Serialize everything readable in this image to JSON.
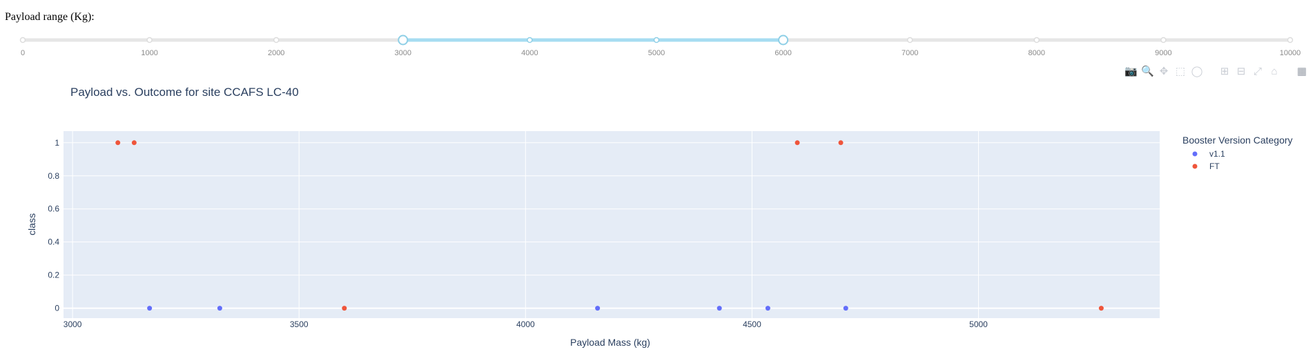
{
  "slider": {
    "label": "Payload range (Kg):",
    "min": 0,
    "max": 10000,
    "selected": [
      3000,
      6000
    ],
    "marks": [
      "0",
      "1000",
      "2000",
      "3000",
      "4000",
      "5000",
      "6000",
      "7000",
      "8000",
      "9000",
      "10000"
    ],
    "track_color": "#e6e6e6",
    "range_color": "#a6dcf1",
    "handle_color": "#8ecfe6"
  },
  "modebar": {
    "buttons": [
      "camera-icon",
      "zoom-icon",
      "pan-icon",
      "box-select-icon",
      "lasso-select-icon",
      "zoom-in-icon",
      "zoom-out-icon",
      "autoscale-icon",
      "reset-axes-icon",
      "plotly-logo-icon"
    ]
  },
  "chart_data": {
    "type": "scatter",
    "title": "Payload vs. Outcome for site CCAFS LC-40",
    "xlabel": "Payload Mass (kg)",
    "ylabel": "class",
    "xlim": [
      2980,
      5400
    ],
    "ylim": [
      -0.06,
      1.07
    ],
    "xticks": [
      3000,
      3500,
      4000,
      4500,
      5000
    ],
    "yticks": [
      0,
      0.2,
      0.4,
      0.6,
      0.8,
      1
    ],
    "ytick_labels": [
      "0",
      "0.2",
      "0.4",
      "0.6",
      "0.8",
      "1"
    ],
    "xtick_labels": [
      "3000",
      "3500",
      "4000",
      "4500",
      "5000"
    ],
    "grid": true,
    "legend_title": "Booster Version Category",
    "legend_position": "right",
    "plot_bg": "#e5ecf6",
    "series": [
      {
        "name": "v1.1",
        "color": "#636efa",
        "x": [
          3170,
          3325,
          4159,
          4428,
          4535,
          4707
        ],
        "y": [
          0,
          0,
          0,
          0,
          0,
          0
        ]
      },
      {
        "name": "FT",
        "color": "#ef553b",
        "x": [
          3100,
          3136,
          3600,
          4600,
          4696,
          5271
        ],
        "y": [
          1,
          1,
          0,
          1,
          1,
          0
        ]
      }
    ]
  }
}
